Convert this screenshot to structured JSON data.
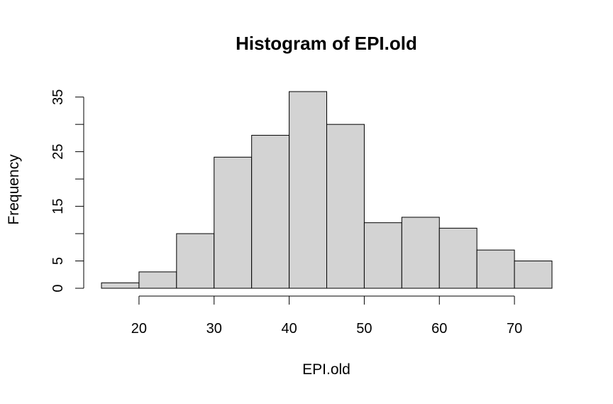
{
  "chart_data": {
    "type": "bar",
    "subtype": "histogram",
    "title": "Histogram of EPI.old",
    "xlabel": "EPI.old",
    "ylabel": "Frequency",
    "bin_edges": [
      15,
      20,
      25,
      30,
      35,
      40,
      45,
      50,
      55,
      60,
      65,
      70,
      75
    ],
    "values": [
      1,
      3,
      10,
      24,
      28,
      36,
      30,
      12,
      13,
      11,
      7,
      5
    ],
    "xlim": [
      15,
      75
    ],
    "ylim": [
      0,
      36
    ],
    "x_ticks": [
      20,
      30,
      40,
      50,
      60,
      70
    ],
    "x_tick_labels": [
      "20",
      "30",
      "40",
      "50",
      "60",
      "70"
    ],
    "y_ticks": [
      0,
      5,
      10,
      15,
      20,
      25,
      30,
      35
    ],
    "y_tick_labels": [
      "0",
      "5",
      "",
      "15",
      "",
      "25",
      "",
      "35"
    ],
    "grid": false,
    "legend": "none",
    "bar_fill": "#d3d3d3",
    "bar_stroke": "#000000"
  }
}
